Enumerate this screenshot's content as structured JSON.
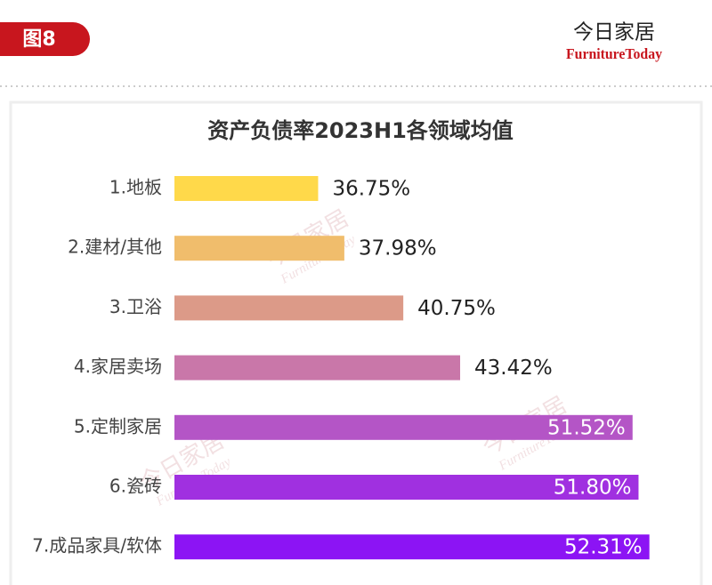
{
  "header": {
    "badge": "图8",
    "logo_cn": "今日家居",
    "logo_en": "FurnitureToday"
  },
  "chart_data": {
    "type": "bar",
    "orientation": "horizontal",
    "title": "资产负债率2023H1各领域均值",
    "categories": [
      "1.地板",
      "2.建材/其他",
      "3.卫浴",
      "4.家居卖场",
      "5.定制家居",
      "6.瓷砖",
      "7.成品家具/软体"
    ],
    "values": [
      36.75,
      37.98,
      40.75,
      43.42,
      51.52,
      51.8,
      52.31
    ],
    "value_labels": [
      "36.75%",
      "37.98%",
      "40.75%",
      "43.42%",
      "51.52%",
      "51.80%",
      "52.31%"
    ],
    "colors": [
      "#ffd94a",
      "#f0bd6c",
      "#dc9a88",
      "#c977a9",
      "#b455c6",
      "#a030e0",
      "#8c14f4"
    ],
    "xlim": [
      30,
      55
    ]
  }
}
